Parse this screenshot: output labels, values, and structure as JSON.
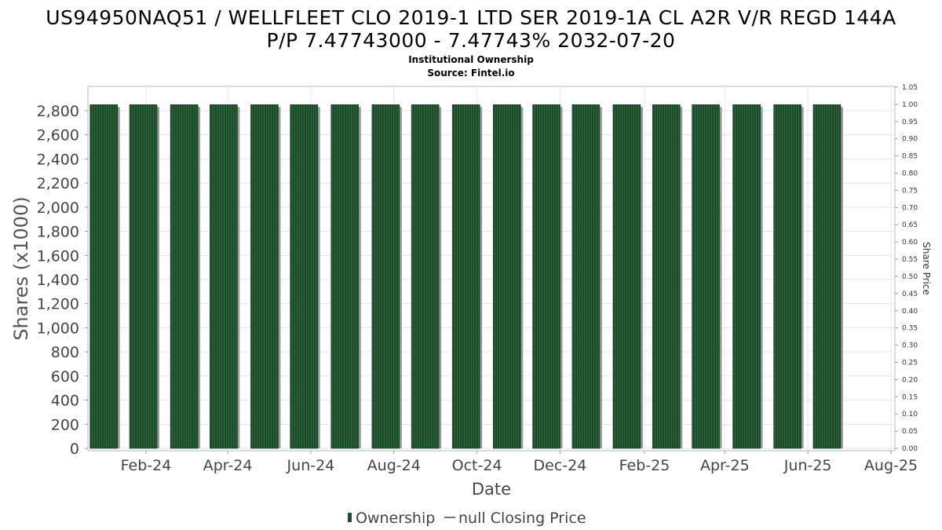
{
  "chart_data": {
    "type": "bar",
    "title_lines": [
      "US94950NAQ51 / WELLFLEET CLO 2019-1 LTD SER 2019-1A CL A2R V/R REGD 144A",
      "P/P 7.47743000 - 7.47743% 2032-07-20"
    ],
    "subtitle": "Institutional Ownership",
    "source": "Source: Fintel.io",
    "xlabel": "Date",
    "ylabel": "Shares (x1000)",
    "y2label": "Share Price",
    "ylim": [
      0,
      2950
    ],
    "y_ticks": [
      0,
      200,
      400,
      600,
      800,
      1000,
      1200,
      1400,
      1600,
      1800,
      2000,
      2200,
      2400,
      2600,
      2800
    ],
    "y_tick_labels": [
      "0",
      "200",
      "400",
      "600",
      "800",
      "1,000",
      "1,200",
      "1,400",
      "1,600",
      "1,800",
      "2,000",
      "2,200",
      "2,400",
      "2,600",
      "2,800"
    ],
    "y2lim": [
      0,
      1.05
    ],
    "y2_ticks": [
      0,
      0.05,
      0.1,
      0.15,
      0.2,
      0.25,
      0.3,
      0.35,
      0.4,
      0.45,
      0.5,
      0.55,
      0.6,
      0.65,
      0.7,
      0.75,
      0.8,
      0.85,
      0.9,
      0.95,
      1.0,
      1.05
    ],
    "y2_tick_labels": [
      "0.00",
      "0.05",
      "0.10",
      "0.15",
      "0.20",
      "0.25",
      "0.30",
      "0.35",
      "0.40",
      "0.45",
      "0.50",
      "0.55",
      "0.60",
      "0.65",
      "0.70",
      "0.75",
      "0.80",
      "0.85",
      "0.90",
      "0.95",
      "1.00",
      "1.05"
    ],
    "x_tick_labels": [
      "Feb-24",
      "Apr-24",
      "Jun-24",
      "Aug-24",
      "Oct-24",
      "Dec-24",
      "Feb-25",
      "Apr-25",
      "Jun-25",
      "Aug-25"
    ],
    "x_tick_dates": [
      "2024-02-01",
      "2024-04-01",
      "2024-06-01",
      "2024-08-01",
      "2024-10-01",
      "2024-12-01",
      "2025-02-01",
      "2025-04-01",
      "2025-06-01",
      "2025-08-01"
    ],
    "xlim": [
      "2023-12-08",
      "2025-08-16"
    ],
    "series": [
      {
        "name": "Ownership",
        "color": "#1f4d2b",
        "x": [
          "2024-01-01",
          "2024-01-30",
          "2024-02-29",
          "2024-03-29",
          "2024-04-28",
          "2024-05-27",
          "2024-06-26",
          "2024-07-26",
          "2024-08-24",
          "2024-09-23",
          "2024-10-23",
          "2024-11-21",
          "2024-12-20",
          "2025-01-19",
          "2025-02-17",
          "2025-03-18",
          "2025-04-17",
          "2025-05-17",
          "2025-06-15"
        ],
        "values": [
          2850,
          2850,
          2850,
          2850,
          2850,
          2850,
          2850,
          2850,
          2850,
          2850,
          2850,
          2850,
          2850,
          2850,
          2850,
          2850,
          2850,
          2850,
          2850
        ]
      }
    ],
    "legend": {
      "position": "bottom",
      "entries": [
        {
          "label": "Ownership",
          "color": "#1f4d2b",
          "marker": "bar"
        },
        {
          "label": "null Closing Price",
          "color": "#444444",
          "marker": "line"
        }
      ]
    },
    "grid": true
  }
}
